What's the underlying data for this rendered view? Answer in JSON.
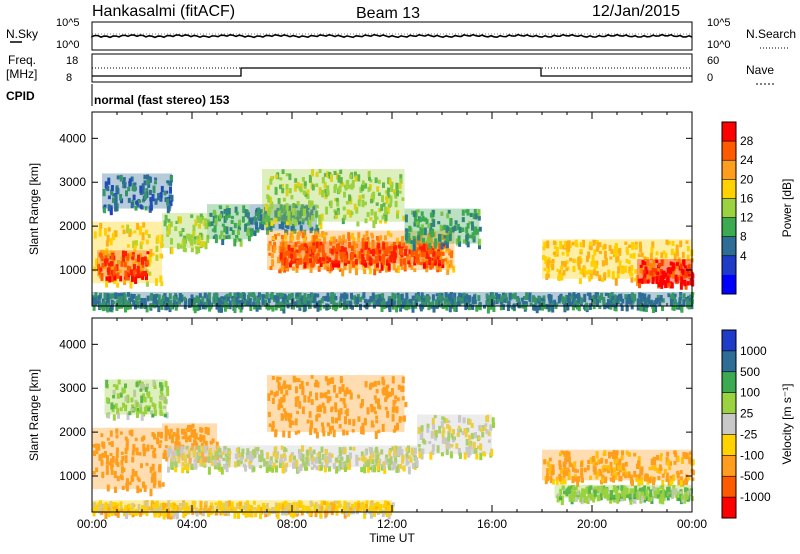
{
  "header": {
    "station": "Hankasalmi (fitACF)",
    "beam": "Beam 13",
    "date": "12/Jan/2015"
  },
  "top_panels": {
    "nsky_label": "N.Sky",
    "nsearch_label": "N.Search",
    "nsky_ticks": [
      "10^5",
      "10^0"
    ],
    "nsearch_ticks": [
      "10^5",
      "10^0"
    ],
    "freq_label_line1": "Freq.",
    "freq_label_line2": "[MHz]",
    "freq_ticks": [
      "18",
      "8"
    ],
    "nave_label": "Nave",
    "nave_ticks": [
      "60",
      "0"
    ],
    "cpid_label": "CPID",
    "cpid_text": "normal (fast stereo) 153"
  },
  "legends": {
    "power": {
      "title": "Power [dB]",
      "labels": [
        "28",
        "24",
        "20",
        "16",
        "12",
        "8",
        "4"
      ],
      "colors": [
        "#ff0000",
        "#ff5a00",
        "#ff9e1e",
        "#ffd200",
        "#9ad240",
        "#3caa50",
        "#2e6e96",
        "#1e3cc8",
        "#0000ff"
      ]
    },
    "velocity": {
      "title": "Velocity [m s⁻¹]",
      "labels": [
        "1000",
        "500",
        "100",
        "25",
        "-25",
        "-100",
        "-500",
        "-1000"
      ],
      "colors": [
        "#1e3cc8",
        "#2e6e96",
        "#3caa50",
        "#9ad240",
        "#c8c8c8",
        "#ffd200",
        "#ff9e1e",
        "#ff5a00",
        "#ff0000"
      ]
    }
  },
  "chart_data": [
    {
      "type": "heatmap",
      "title": "Power",
      "xlabel": "Time UT",
      "ylabel": "Slant Range [km]",
      "xlim": [
        0,
        24
      ],
      "ylim": [
        180,
        4600
      ],
      "x_tick_labels": [
        "00:00",
        "04:00",
        "08:00",
        "12:00",
        "16:00",
        "20:00",
        "00:00"
      ],
      "y_tick_labels": [
        "1000",
        "2000",
        "3000",
        "4000"
      ],
      "colorbar_range": [
        0,
        32
      ],
      "regions": [
        {
          "t0": 0.0,
          "t1": 2.8,
          "r0": 700,
          "r1": 2100,
          "power": 18
        },
        {
          "t0": 0.2,
          "t1": 2.2,
          "r0": 850,
          "r1": 1450,
          "power": 28
        },
        {
          "t0": 0.4,
          "t1": 3.2,
          "r0": 2400,
          "r1": 3200,
          "power": 6
        },
        {
          "t0": 2.8,
          "t1": 4.6,
          "r0": 1500,
          "r1": 2300,
          "power": 14
        },
        {
          "t0": 4.6,
          "t1": 6.3,
          "r0": 1700,
          "r1": 2500,
          "power": 10
        },
        {
          "t0": 6.3,
          "t1": 9.0,
          "r0": 1900,
          "r1": 2500,
          "power": 8
        },
        {
          "t0": 7.0,
          "t1": 14.5,
          "r0": 1000,
          "r1": 1900,
          "power": 22
        },
        {
          "t0": 7.5,
          "t1": 14.0,
          "r0": 1150,
          "r1": 1650,
          "power": 28
        },
        {
          "t0": 6.8,
          "t1": 12.5,
          "r0": 2100,
          "r1": 3300,
          "power": 14
        },
        {
          "t0": 12.5,
          "t1": 15.5,
          "r0": 1600,
          "r1": 2400,
          "power": 9
        },
        {
          "t0": 18.0,
          "t1": 24.0,
          "r0": 800,
          "r1": 1700,
          "power": 20
        },
        {
          "t0": 21.8,
          "t1": 24.0,
          "r0": 700,
          "r1": 1250,
          "power": 30
        },
        {
          "t0": 0.0,
          "t1": 24.0,
          "r0": 180,
          "r1": 500,
          "power": 8
        }
      ]
    },
    {
      "type": "heatmap",
      "title": "Velocity",
      "xlabel": "Time UT",
      "ylabel": "Slant Range [km]",
      "xlim": [
        0,
        24
      ],
      "ylim": [
        180,
        4600
      ],
      "x_tick_labels": [
        "00:00",
        "04:00",
        "08:00",
        "12:00",
        "16:00",
        "20:00",
        "00:00"
      ],
      "y_tick_labels": [
        "1000",
        "2000",
        "3000",
        "4000"
      ],
      "colorbar_range": [
        -1000,
        1000
      ],
      "regions": [
        {
          "t0": 0.0,
          "t1": 2.8,
          "r0": 700,
          "r1": 2100,
          "velocity": -300
        },
        {
          "t0": 2.8,
          "t1": 5.0,
          "r0": 1400,
          "r1": 2200,
          "velocity": -200
        },
        {
          "t0": 0.5,
          "t1": 3.0,
          "r0": 2400,
          "r1": 3200,
          "velocity": 60
        },
        {
          "t0": 3.0,
          "t1": 13.0,
          "r0": 1200,
          "r1": 1700,
          "velocity": 0
        },
        {
          "t0": 7.0,
          "t1": 12.5,
          "r0": 2000,
          "r1": 3300,
          "velocity": -400
        },
        {
          "t0": 13.0,
          "t1": 16.0,
          "r0": 1500,
          "r1": 2400,
          "velocity": 0
        },
        {
          "t0": 18.0,
          "t1": 24.0,
          "r0": 900,
          "r1": 1600,
          "velocity": -120
        },
        {
          "t0": 18.5,
          "t1": 24.0,
          "r0": 500,
          "r1": 800,
          "velocity": 80
        },
        {
          "t0": 0.0,
          "t1": 12.0,
          "r0": 180,
          "r1": 450,
          "velocity": -60
        }
      ]
    }
  ]
}
